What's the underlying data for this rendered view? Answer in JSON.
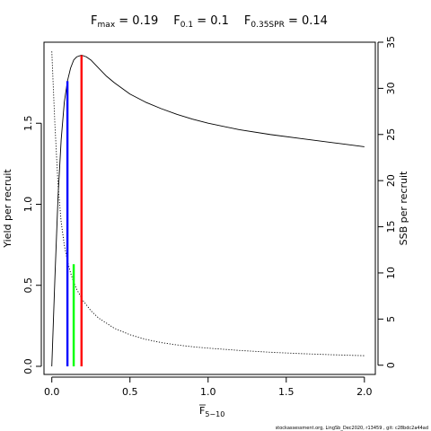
{
  "chart_data": {
    "type": "line",
    "title": {
      "parts": [
        {
          "main": "F",
          "sub": "max",
          "value": " = 0.19"
        },
        {
          "main": "F",
          "sub": "0.1",
          "value": " = 0.1"
        },
        {
          "main": "F",
          "sub": "0.35SPR",
          "value": " = 0.14"
        }
      ]
    },
    "xlabel": {
      "main": "F",
      "sub": "5−10",
      "overbar": true
    },
    "ylabel": "Yield per recruit",
    "y2label": "SSB per recruit",
    "xlim": [
      -0.05,
      2.07
    ],
    "ylim": [
      -0.05,
      2.0
    ],
    "y2lim": [
      -1.0,
      35.0
    ],
    "x_ticks": [
      0.0,
      0.5,
      1.0,
      1.5,
      2.0
    ],
    "x_tick_labels": [
      "0.0",
      "0.5",
      "1.0",
      "1.5",
      "2.0"
    ],
    "y_ticks": [
      0.0,
      0.5,
      1.0,
      1.5
    ],
    "y_tick_labels": [
      "0.0",
      "0.5",
      "1.0",
      "1.5"
    ],
    "y2_ticks": [
      0,
      5,
      10,
      15,
      20,
      25,
      30,
      35
    ],
    "y2_tick_labels": [
      "0",
      "5",
      "10",
      "15",
      "20",
      "25",
      "30",
      "35"
    ],
    "series": [
      {
        "axis": "left",
        "style": "solid",
        "color": "#000000",
        "x": [
          0.0,
          0.02,
          0.04,
          0.06,
          0.08,
          0.1,
          0.12,
          0.14,
          0.16,
          0.19,
          0.22,
          0.25,
          0.3,
          0.35,
          0.4,
          0.5,
          0.6,
          0.7,
          0.8,
          0.9,
          1.0,
          1.2,
          1.4,
          1.6,
          1.8,
          2.0
        ],
        "y": [
          0.0,
          0.55,
          1.05,
          1.4,
          1.63,
          1.76,
          1.84,
          1.89,
          1.91,
          1.92,
          1.91,
          1.89,
          1.84,
          1.79,
          1.75,
          1.68,
          1.63,
          1.59,
          1.555,
          1.525,
          1.5,
          1.46,
          1.43,
          1.405,
          1.38,
          1.355
        ]
      },
      {
        "axis": "right",
        "style": "dotted",
        "color": "#000000",
        "x": [
          0.0,
          0.02,
          0.04,
          0.06,
          0.08,
          0.1,
          0.12,
          0.14,
          0.16,
          0.2,
          0.25,
          0.3,
          0.4,
          0.5,
          0.6,
          0.7,
          0.8,
          0.9,
          1.0,
          1.2,
          1.4,
          1.6,
          1.8,
          2.0
        ],
        "y": [
          34.0,
          26.0,
          19.5,
          15.5,
          13.0,
          11.3,
          10.0,
          9.0,
          8.2,
          7.0,
          5.9,
          5.1,
          4.0,
          3.3,
          2.8,
          2.45,
          2.2,
          2.0,
          1.85,
          1.6,
          1.4,
          1.25,
          1.13,
          1.03
        ]
      }
    ],
    "reference_lines": [
      {
        "name": "F0.1",
        "x": 0.1,
        "y_top": 1.76,
        "color": "#0000ff"
      },
      {
        "name": "F0.35SPR",
        "x": 0.14,
        "y_top": 0.63,
        "color": "#00ff00"
      },
      {
        "name": "Fmax",
        "x": 0.19,
        "y_top": 1.92,
        "color": "#ff0000"
      }
    ]
  },
  "footer": "stockassessment.org, LingSb_Dec2020, r13459 ,  git: c28bdc2a44ad"
}
